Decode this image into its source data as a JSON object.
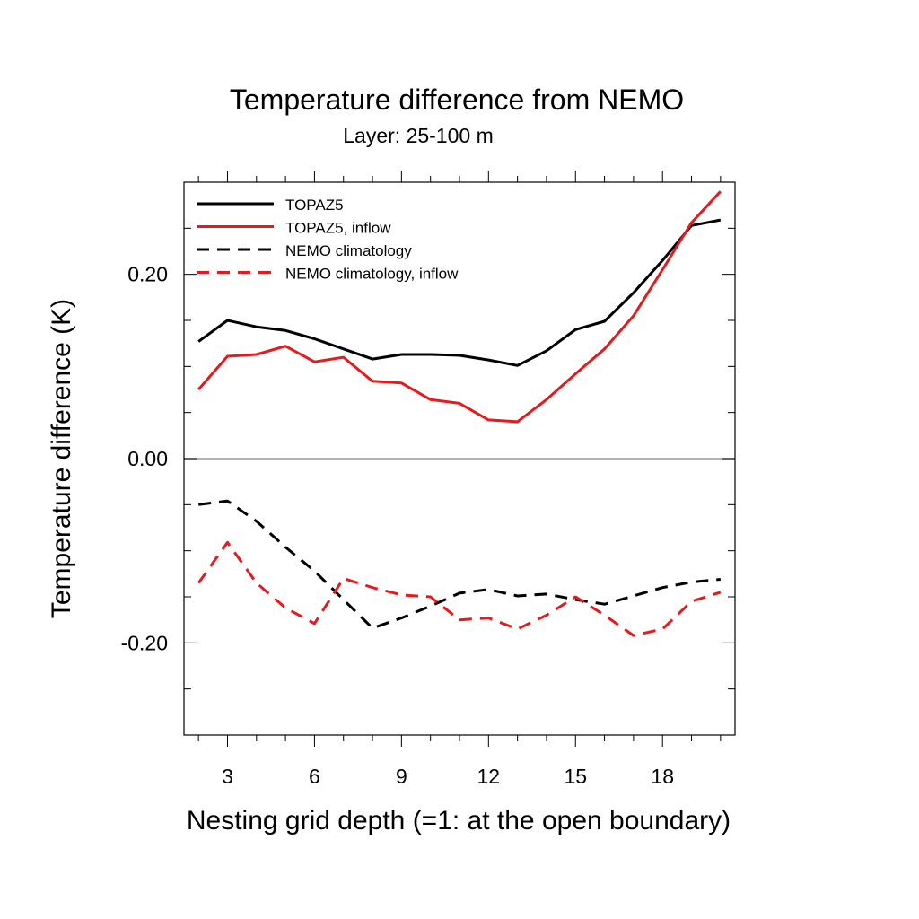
{
  "chart_data": {
    "type": "line",
    "title": "Temperature difference from NEMO",
    "subtitle": "Layer: 25-100 m",
    "xlabel": "Nesting grid depth (=1: at the open boundary)",
    "ylabel": "Temperature difference (K)",
    "xlim": [
      1.5,
      20.5
    ],
    "ylim": [
      -0.3,
      0.3
    ],
    "x_ticks": [
      3,
      6,
      9,
      12,
      15,
      18
    ],
    "x_tick_labels": [
      "3",
      "6",
      "9",
      "12",
      "15",
      "18"
    ],
    "y_ticks": [
      -0.2,
      0.0,
      0.2
    ],
    "y_tick_labels": [
      "-0.20",
      "0.00",
      "0.20"
    ],
    "zero_line": true,
    "grid": false,
    "legend_position": "top-left",
    "x": [
      2,
      3,
      4,
      5,
      6,
      7,
      8,
      9,
      10,
      11,
      12,
      13,
      14,
      15,
      16,
      17,
      18,
      19,
      20
    ],
    "series": [
      {
        "name": "TOPAZ5",
        "color": "#000000",
        "dash": "solid",
        "values": [
          0.127,
          0.15,
          0.143,
          0.139,
          0.13,
          0.119,
          0.108,
          0.113,
          0.113,
          0.112,
          0.107,
          0.101,
          0.117,
          0.14,
          0.149,
          0.18,
          0.215,
          0.253,
          0.259
        ]
      },
      {
        "name": "TOPAZ5, inflow",
        "color": "#e41a1c",
        "dash": "solid",
        "values": [
          0.075,
          0.111,
          0.113,
          0.122,
          0.105,
          0.11,
          0.084,
          0.082,
          0.064,
          0.06,
          0.042,
          0.04,
          0.064,
          0.092,
          0.119,
          0.155,
          0.205,
          0.256,
          0.29
        ]
      },
      {
        "name": "NEMO climatology",
        "color": "#000000",
        "dash": "dashed",
        "values": [
          -0.05,
          -0.046,
          -0.068,
          -0.096,
          -0.122,
          -0.153,
          -0.184,
          -0.173,
          -0.16,
          -0.146,
          -0.142,
          -0.149,
          -0.147,
          -0.153,
          -0.158,
          -0.149,
          -0.14,
          -0.134,
          -0.131
        ]
      },
      {
        "name": "NEMO climatology, inflow",
        "color": "#e41a1c",
        "dash": "dashed",
        "values": [
          -0.135,
          -0.091,
          -0.135,
          -0.162,
          -0.179,
          -0.13,
          -0.14,
          -0.148,
          -0.15,
          -0.175,
          -0.173,
          -0.185,
          -0.17,
          -0.15,
          -0.17,
          -0.192,
          -0.185,
          -0.155,
          -0.145
        ]
      }
    ]
  }
}
